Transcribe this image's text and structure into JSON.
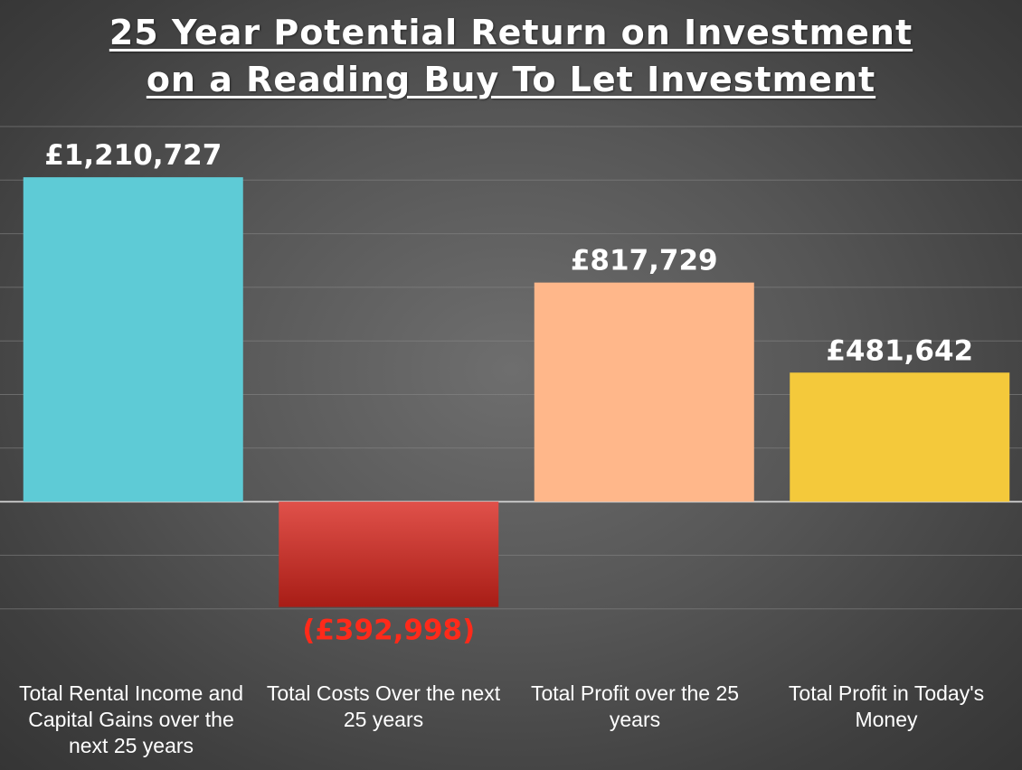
{
  "chart_data": {
    "type": "bar",
    "title_lines": [
      "25 Year Potential Return on Investment",
      "on a Reading Buy To Let Investment"
    ],
    "categories": [
      "Total Rental Income and Capital Gains over the next 25 years",
      "Total Costs Over the next 25 years",
      "Total Profit over the 25 years",
      "Total Profit in Today's Money"
    ],
    "values": [
      1210727,
      -392998,
      817729,
      481642
    ],
    "data_labels": [
      "£1,210,727",
      "(£392,998)",
      "£817,729",
      "£481,642"
    ],
    "bar_colors": [
      "#5ecbd6",
      "#d9453e",
      "#ffb78a",
      "#f4c93b"
    ],
    "label_colors": [
      "#ffffff",
      "#ff2a1a",
      "#ffffff",
      "#ffffff"
    ],
    "ylim": [
      -600000,
      1400000
    ],
    "gridline_step": 200000,
    "grid": true,
    "legend": "none",
    "xlabel": "",
    "ylabel": ""
  }
}
